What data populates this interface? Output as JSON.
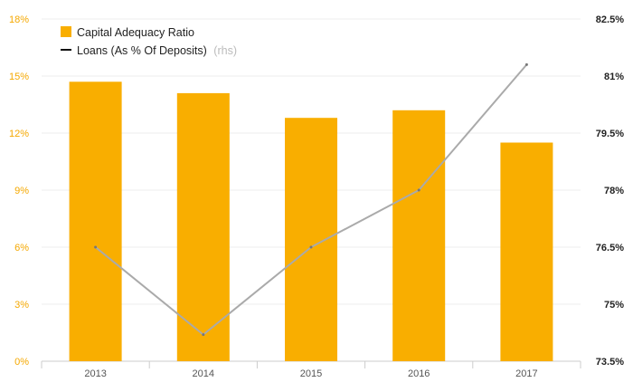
{
  "chart_data": {
    "type": "bar",
    "categories": [
      "2013",
      "2014",
      "2015",
      "2016",
      "2017"
    ],
    "series": [
      {
        "name": "Capital Adequacy Ratio",
        "type": "bar",
        "axis": "left",
        "values": [
          14.7,
          14.1,
          12.8,
          13.2,
          11.5
        ],
        "color": "#f9ae00"
      },
      {
        "name": "Loans (As % Of Deposits)",
        "name_note": "(rhs)",
        "type": "line",
        "axis": "right",
        "values": [
          76.5,
          74.2,
          76.5,
          78.0,
          81.3
        ],
        "color": "#aaaaaa",
        "legend_color": "#111111"
      }
    ],
    "y_left": {
      "ylim": [
        0,
        18
      ],
      "ticks": [
        0,
        3,
        6,
        9,
        12,
        15,
        18
      ],
      "tick_labels": [
        "0%",
        "3%",
        "6%",
        "9%",
        "12%",
        "15%",
        "18%"
      ],
      "color": "#f5a800"
    },
    "y_right": {
      "ylim": [
        73.5,
        82.5
      ],
      "ticks": [
        73.5,
        75,
        76.5,
        78,
        79.5,
        81,
        82.5
      ],
      "tick_labels": [
        "73.5%",
        "75%",
        "76.5%",
        "78%",
        "79.5%",
        "81%",
        "82.5%"
      ],
      "color": "#222222"
    },
    "grid": true,
    "legend": "top-left"
  }
}
